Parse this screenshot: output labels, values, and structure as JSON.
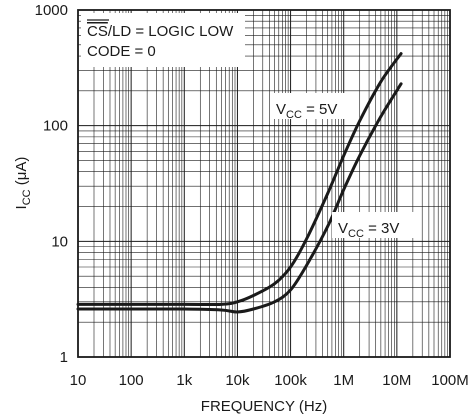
{
  "chart_data": {
    "type": "line",
    "title": "",
    "xlabel": "FREQUENCY (Hz)",
    "ylabel": {
      "base": "I",
      "sub": "CC",
      "unit": " (μA)"
    },
    "x_scale": "log",
    "y_scale": "log",
    "xlim": [
      10,
      100000000
    ],
    "ylim": [
      1,
      1000
    ],
    "grid": true,
    "x_ticks": [
      10,
      100,
      1000,
      10000,
      100000,
      1000000,
      10000000,
      100000000
    ],
    "x_tick_labels": [
      "10",
      "100",
      "1k",
      "10k",
      "100k",
      "1M",
      "10M",
      "100M"
    ],
    "y_ticks": [
      1,
      10,
      100,
      1000
    ],
    "y_tick_labels": [
      "1",
      "10",
      "100",
      "1000"
    ],
    "annotations": [
      {
        "overbar": "CS",
        "text": "/LD = LOGIC LOW"
      },
      {
        "text": "CODE = 0"
      }
    ],
    "series": [
      {
        "name": "VCC = 5V",
        "label": {
          "base": "V",
          "sub": "CC",
          "rest": " = 5V"
        },
        "x": [
          10,
          100,
          1000,
          5000,
          10000,
          20000,
          50000,
          100000,
          200000,
          500000,
          1000000,
          2000000,
          5000000,
          12000000
        ],
        "y": [
          2.85,
          2.85,
          2.85,
          2.85,
          3.0,
          3.4,
          4.3,
          6.0,
          10.5,
          26,
          55,
          110,
          240,
          420
        ]
      },
      {
        "name": "VCC = 3V",
        "label": {
          "base": "V",
          "sub": "CC",
          "rest": " = 3V"
        },
        "x": [
          10,
          100,
          1000,
          5000,
          10000,
          20000,
          50000,
          100000,
          200000,
          500000,
          1000000,
          2000000,
          5000000,
          12000000
        ],
        "y": [
          2.6,
          2.6,
          2.6,
          2.55,
          2.45,
          2.6,
          3.0,
          3.8,
          6.2,
          13.5,
          28,
          55,
          120,
          230
        ]
      }
    ]
  }
}
